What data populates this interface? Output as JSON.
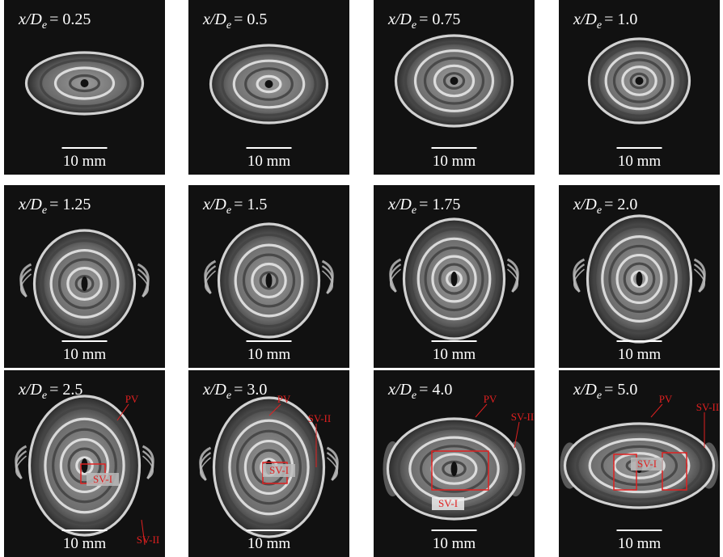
{
  "figure": {
    "label_var": "x/D",
    "label_sub": "e",
    "panels": [
      {
        "value": "= 0.25",
        "scale_bar": "10 mm"
      },
      {
        "value": "= 0.5",
        "scale_bar": "10 mm"
      },
      {
        "value": "= 0.75",
        "scale_bar": "10 mm"
      },
      {
        "value": "= 1.0",
        "scale_bar": "10 mm"
      },
      {
        "value": "= 1.25",
        "scale_bar": "10 mm"
      },
      {
        "value": "= 1.5",
        "scale_bar": "10 mm"
      },
      {
        "value": "= 1.75",
        "scale_bar": "10 mm"
      },
      {
        "value": "= 2.0",
        "scale_bar": "10 mm"
      },
      {
        "value": "= 2.5",
        "scale_bar": "10 mm",
        "annotations": [
          "PV",
          "SV-I",
          "SV-II"
        ]
      },
      {
        "value": "= 3.0",
        "scale_bar": "10 mm",
        "annotations": [
          "PV",
          "SV-I",
          "SV-II"
        ]
      },
      {
        "value": "= 4.0",
        "scale_bar": "10 mm",
        "annotations": [
          "PV",
          "SV-I",
          "SV-II"
        ]
      },
      {
        "value": "= 5.0",
        "scale_bar": "10 mm",
        "annotations": [
          "PV",
          "SV-I",
          "SV-II"
        ]
      }
    ]
  }
}
